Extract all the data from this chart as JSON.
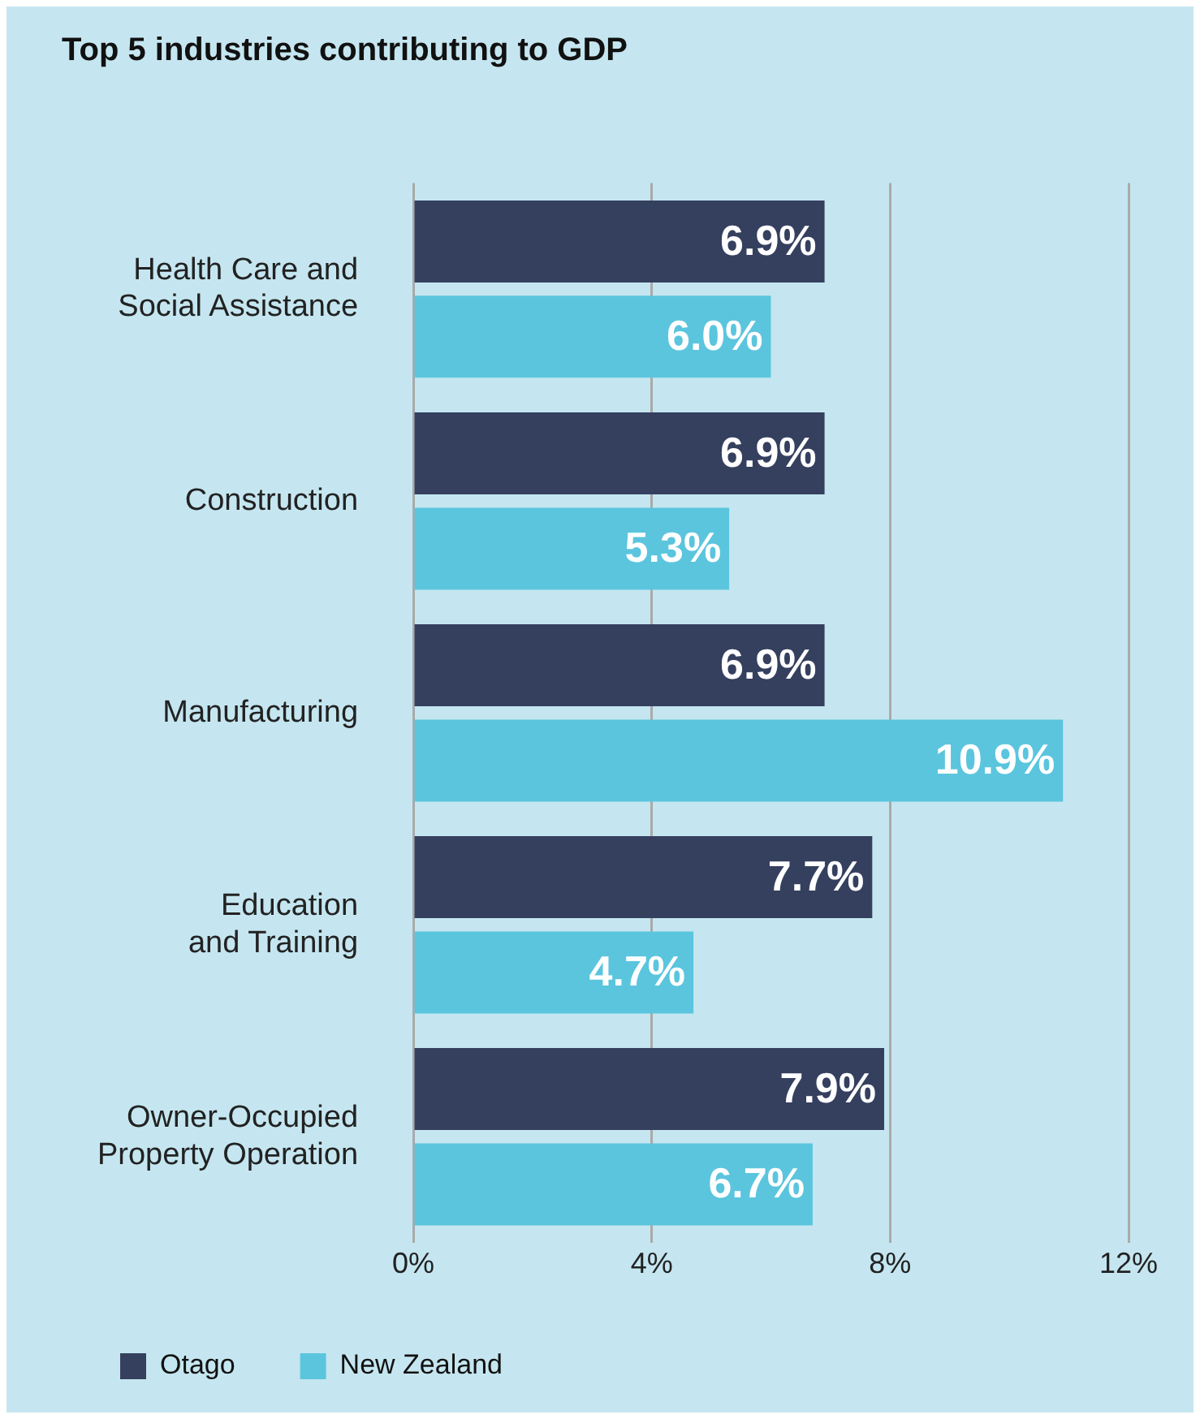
{
  "chart_data": {
    "type": "bar",
    "orientation": "horizontal",
    "title": "Top 5 industries contributing to GDP",
    "categories": [
      "Health Care and Social Assistance",
      "Construction",
      "Manufacturing",
      "Education and Training",
      "Owner-Occupied Property Operation"
    ],
    "series": [
      {
        "name": "Otago",
        "color": "#35405f",
        "values": [
          6.9,
          6.9,
          6.9,
          7.7,
          7.9
        ],
        "value_labels": [
          "6.9%",
          "6.9%",
          "6.9%",
          "7.7%",
          "7.9%"
        ]
      },
      {
        "name": "New Zealand",
        "color": "#5bc5de",
        "values": [
          6.0,
          5.3,
          10.9,
          4.7,
          6.7
        ],
        "value_labels": [
          "6.0%",
          "5.3%",
          "10.9%",
          "4.7%",
          "6.7%"
        ]
      }
    ],
    "xlim": [
      0,
      12
    ],
    "xticks": [
      {
        "value": 0,
        "label": "0%"
      },
      {
        "value": 4,
        "label": "4%"
      },
      {
        "value": 8,
        "label": "8%"
      },
      {
        "value": 12,
        "label": "12%"
      }
    ],
    "grid": "x",
    "legend": "bottom left"
  }
}
